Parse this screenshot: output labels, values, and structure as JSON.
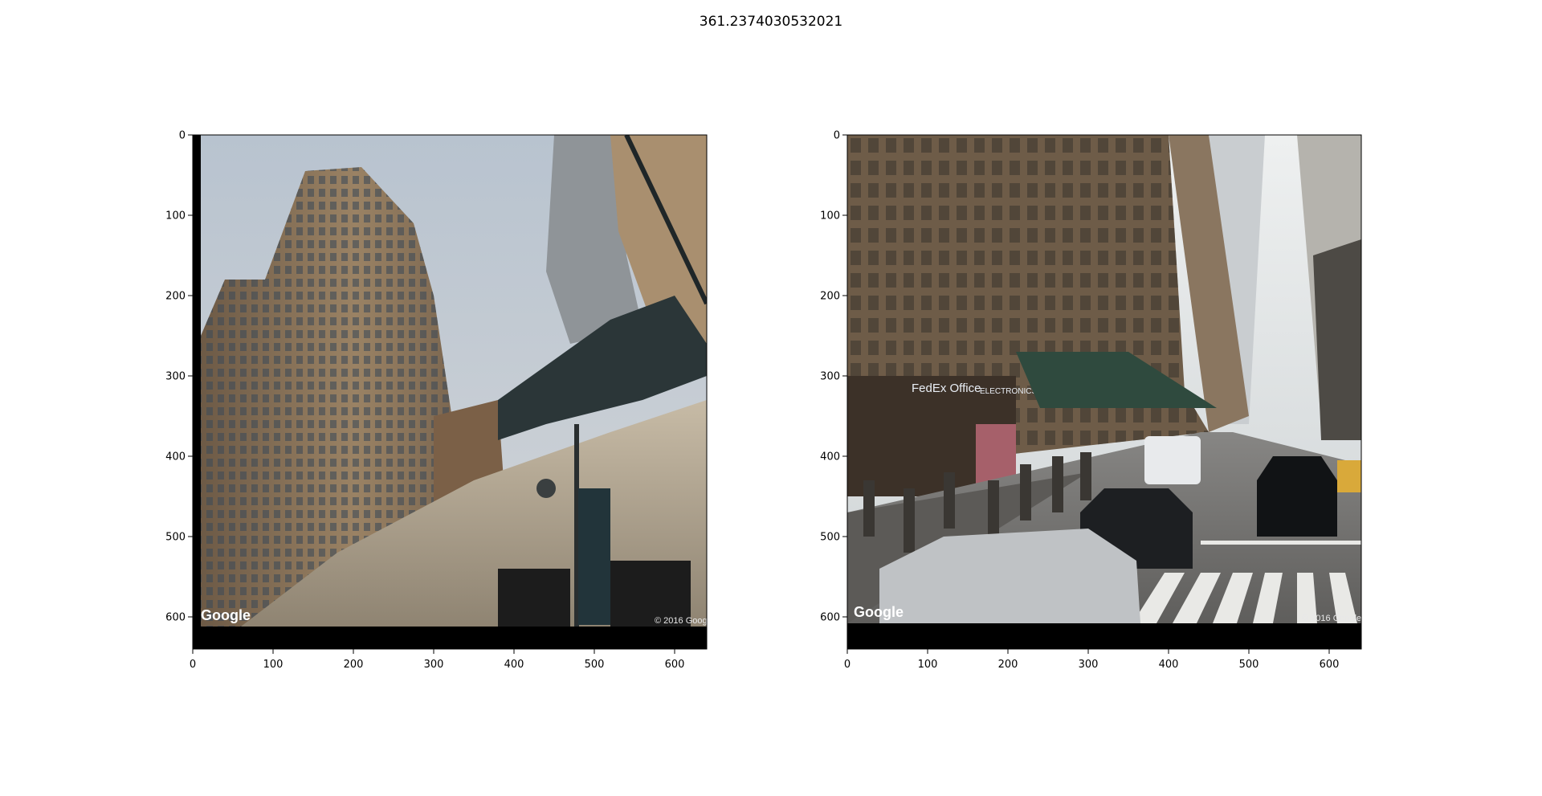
{
  "figure": {
    "title": "361.2374030532021"
  },
  "axes": {
    "x_ticks": [
      "0",
      "100",
      "200",
      "300",
      "400",
      "500",
      "600"
    ],
    "y_ticks": [
      "0",
      "100",
      "200",
      "300",
      "400",
      "500",
      "600"
    ],
    "x_range": [
      0,
      640
    ],
    "y_range": [
      0,
      640
    ]
  },
  "panels": [
    {
      "scene": "low-angle view of a tall tan brick high-rise beside an elevated rail structure and street lamp",
      "watermark": "Google",
      "copyright": "© 2016 Goog",
      "colors": {
        "sky": "#c4ccd6",
        "building": "#8a735a",
        "wall": "#b9ac96",
        "steel": "#2b3638"
      }
    },
    {
      "scene": "busy Manhattan avenue with pedestrians, a silver SUV, black SUVs and a crosswalk",
      "watermark": "Google",
      "copyright": "© 2016 Google",
      "signs": {
        "fedex": "FedEx Office",
        "electronics": "ELECTRONICS"
      },
      "colors": {
        "sky": "#dfe4e6",
        "building": "#6e5c48",
        "road": "#6f6e6c",
        "canopy": "#2f4a3e"
      }
    }
  ]
}
